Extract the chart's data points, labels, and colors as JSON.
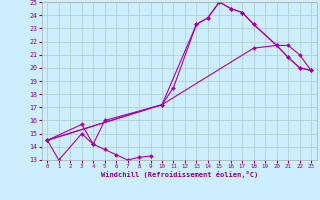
{
  "xlabel": "Windchill (Refroidissement éolien,°C)",
  "xlim": [
    -0.5,
    23.5
  ],
  "ylim": [
    13,
    25
  ],
  "yticks": [
    13,
    14,
    15,
    16,
    17,
    18,
    19,
    20,
    21,
    22,
    23,
    24,
    25
  ],
  "xticks": [
    0,
    1,
    2,
    3,
    4,
    5,
    6,
    7,
    8,
    9,
    10,
    11,
    12,
    13,
    14,
    15,
    16,
    17,
    18,
    19,
    20,
    21,
    22,
    23
  ],
  "bg_color": "#cceeff",
  "grid_color": "#aacccc",
  "line_color": "#aa00aa",
  "lines": [
    {
      "x": [
        0,
        1,
        3,
        4,
        5,
        6,
        7,
        8,
        9
      ],
      "y": [
        14.5,
        13.0,
        15.0,
        14.2,
        13.8,
        13.4,
        13.0,
        13.2,
        13.3
      ]
    },
    {
      "x": [
        0,
        3,
        4,
        5,
        10,
        11,
        13,
        14,
        15,
        16,
        17,
        18,
        20,
        21,
        22,
        23
      ],
      "y": [
        14.5,
        15.7,
        14.2,
        16.0,
        17.2,
        18.5,
        23.3,
        23.8,
        25.0,
        24.5,
        24.2,
        23.3,
        21.7,
        20.8,
        20.0,
        19.8
      ]
    },
    {
      "x": [
        0,
        10,
        13,
        14,
        15,
        16,
        17,
        18,
        20,
        21,
        22,
        23
      ],
      "y": [
        14.5,
        17.2,
        23.3,
        23.8,
        25.0,
        24.5,
        24.2,
        23.3,
        21.7,
        20.8,
        20.0,
        19.8
      ]
    },
    {
      "x": [
        0,
        10,
        18,
        20,
        21,
        22,
        23
      ],
      "y": [
        14.5,
        17.2,
        21.5,
        21.7,
        21.7,
        21.0,
        19.8
      ]
    }
  ]
}
